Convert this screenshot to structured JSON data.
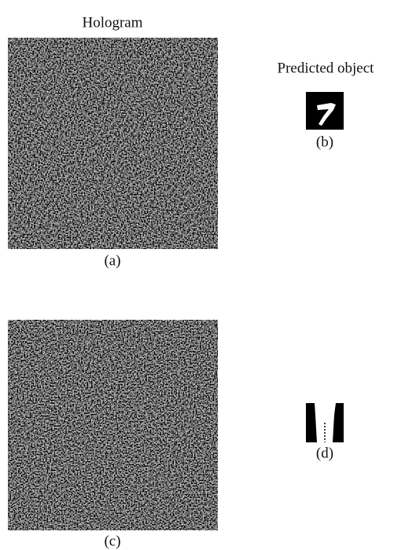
{
  "figure": {
    "column_titles": [
      "Hologram",
      "Predicted object"
    ],
    "panels": [
      {
        "label": "(a)"
      },
      {
        "label": "(b)"
      },
      {
        "label": "(c)"
      },
      {
        "label": "(d)"
      }
    ]
  }
}
